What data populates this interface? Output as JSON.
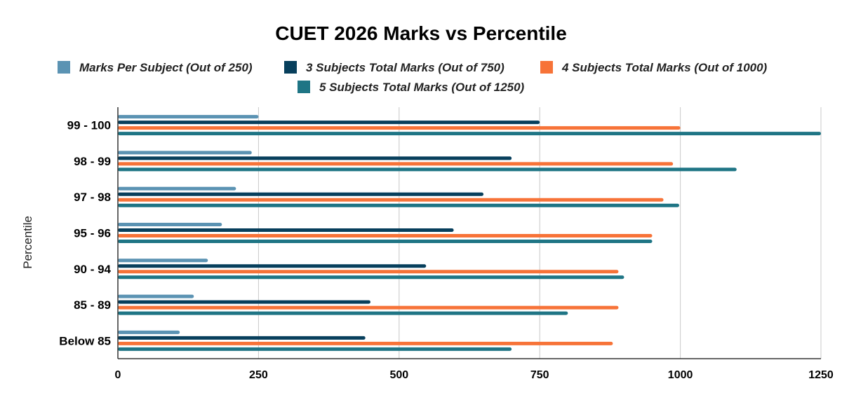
{
  "chart_data": {
    "type": "bar",
    "orientation": "horizontal",
    "title": "CUET 2026 Marks vs Percentile",
    "ylabel": "Percentile",
    "xlabel": "",
    "categories": [
      "99 - 100",
      "98 - 99",
      "97 - 98",
      "95 - 96",
      "90 - 94",
      "85 - 89",
      "Below 85"
    ],
    "xlim": [
      0,
      1250
    ],
    "xticks": [
      "0",
      "250",
      "500",
      "750",
      "1000",
      "1250"
    ],
    "grid": true,
    "legend_position": "top",
    "series": [
      {
        "name": "Marks Per Subject (Out of 250)",
        "color": "#5b93b3",
        "values": [
          250,
          238,
          210,
          185,
          160,
          135,
          110
        ]
      },
      {
        "name": "3 Subjects Total Marks (Out of 750)",
        "color": "#073f5c",
        "values": [
          750,
          700,
          650,
          597,
          548,
          449,
          440
        ]
      },
      {
        "name": "4 Subjects Total Marks (Out of 1000)",
        "color": "#f77338",
        "values": [
          1000,
          987,
          970,
          950,
          890,
          890,
          880
        ]
      },
      {
        "name": "5 Subjects Total Marks (Out of 1250)",
        "color": "#1f7585",
        "values": [
          1250,
          1100,
          998,
          950,
          900,
          800,
          700
        ]
      }
    ]
  }
}
